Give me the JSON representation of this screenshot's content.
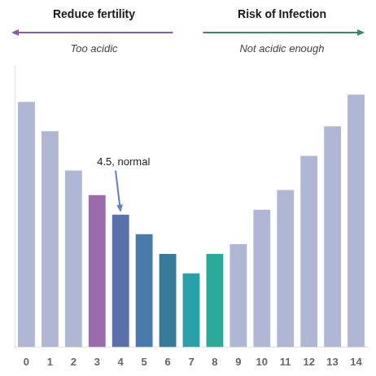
{
  "chart_data": {
    "type": "bar",
    "categories": [
      0,
      1,
      2,
      3,
      4,
      5,
      6,
      7,
      8,
      9,
      10,
      11,
      12,
      13,
      14
    ],
    "values": [
      10.0,
      8.8,
      7.2,
      6.2,
      5.4,
      4.6,
      3.8,
      3.0,
      3.8,
      4.2,
      5.6,
      6.4,
      7.8,
      9.0,
      10.3
    ],
    "colors": [
      "#b0b7d4",
      "#b0b7d4",
      "#b0b7d4",
      "#9b6bad",
      "#5b6faa",
      "#4a7aaa",
      "#387a9a",
      "#2aa0a8",
      "#2aaa98",
      "#b0b7d4",
      "#b0b7d4",
      "#b0b7d4",
      "#b0b7d4",
      "#b0b7d4",
      "#b0b7d4"
    ],
    "ylim": [
      0,
      11.5
    ],
    "grid": false,
    "tick_labels": "x",
    "annotations": [
      {
        "text": "4.5, normal",
        "x": 4,
        "color": "#6080c0"
      },
      {
        "text": "Reduce fertility",
        "subtext": "Too acidic",
        "arrow": "left",
        "color": "#8a5aaa"
      },
      {
        "text": "Risk of Infection",
        "subtext": "Not acidic enough",
        "arrow": "right",
        "color": "#3a8a60"
      }
    ]
  }
}
